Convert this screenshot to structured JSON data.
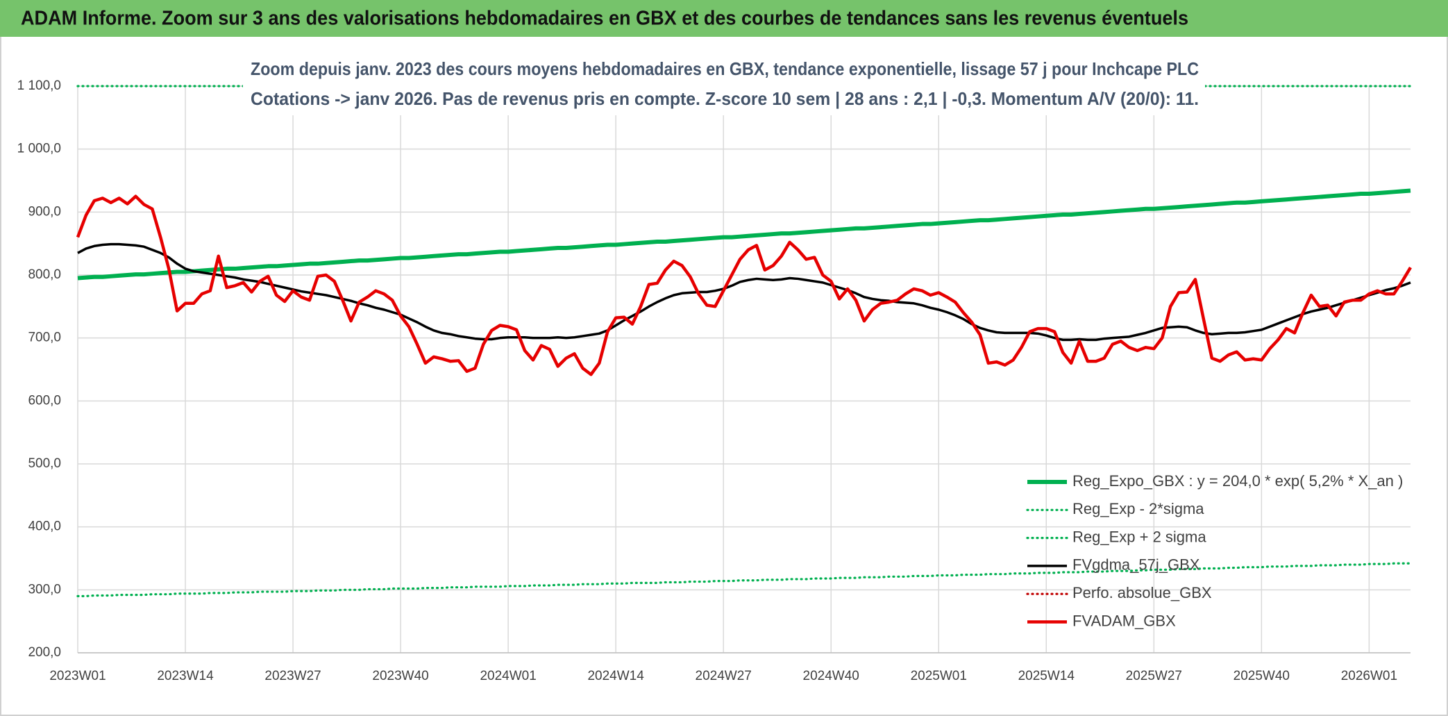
{
  "chart_data": {
    "type": "line",
    "title": "ADAM Informe. Zoom sur 3 ans des valorisations hebdomadaires en GBX et des courbes de tendances sans les revenus éventuels",
    "subtitle": [
      "Zoom depuis janv. 2023 des cours moyens hebdomadaires en GBX, tendance exponentielle, lissage 57 j pour Inchcape PLC",
      "Cotations -> janv 2026. Pas de revenus pris en compte. Z-score 10 sem | 28 ans : 2,1 | -0,3. Momentum A/V (20/0): 11."
    ],
    "categories": [
      "2023W01",
      null,
      null,
      null,
      null,
      null,
      null,
      null,
      null,
      null,
      null,
      null,
      null,
      "2023W14",
      null,
      null,
      null,
      null,
      null,
      null,
      null,
      null,
      null,
      null,
      null,
      null,
      "2023W27",
      null,
      null,
      null,
      null,
      null,
      null,
      null,
      null,
      null,
      null,
      null,
      null,
      "2023W40",
      null,
      null,
      null,
      null,
      null,
      null,
      null,
      null,
      null,
      null,
      null,
      null,
      "2024W01",
      null,
      null,
      null,
      null,
      null,
      null,
      null,
      null,
      null,
      null,
      null,
      null,
      "2024W14",
      null,
      null,
      null,
      null,
      null,
      null,
      null,
      null,
      null,
      null,
      null,
      null,
      "2024W27",
      null,
      null,
      null,
      null,
      null,
      null,
      null,
      null,
      null,
      null,
      null,
      null,
      "2024W40",
      null,
      null,
      null,
      null,
      null,
      null,
      null,
      null,
      null,
      null,
      null,
      null,
      "2025W01",
      null,
      null,
      null,
      null,
      null,
      null,
      null,
      null,
      null,
      null,
      null,
      null,
      "2025W14",
      null,
      null,
      null,
      null,
      null,
      null,
      null,
      null,
      null,
      null,
      null,
      null,
      "2025W27",
      null,
      null,
      null,
      null,
      null,
      null,
      null,
      null,
      null,
      null,
      null,
      null,
      "2025W40",
      null,
      null,
      null,
      null,
      null,
      null,
      null,
      null,
      null,
      null,
      null,
      null,
      "2026W01",
      null,
      null,
      null,
      null,
      null
    ],
    "ylim": [
      200,
      1100
    ],
    "yticks": [
      {
        "value": 200,
        "label": "200,0"
      },
      {
        "value": 300,
        "label": "300,0"
      },
      {
        "value": 400,
        "label": "400,0"
      },
      {
        "value": 500,
        "label": "500,0"
      },
      {
        "value": 600,
        "label": "600,0"
      },
      {
        "value": 700,
        "label": "700,0"
      },
      {
        "value": 800,
        "label": "800,0"
      },
      {
        "value": 900,
        "label": "900,0"
      },
      {
        "value": 1000,
        "label": "1 000,0"
      },
      {
        "value": 1100,
        "label": "1 100,0"
      }
    ],
    "grid": true,
    "legend": "lower right",
    "series": [
      {
        "name": "Reg_Expo_GBX : y = 204,0 * exp( 5,2% *  X_an )",
        "color": "#00b050",
        "line_style": "solid",
        "values": [
          795,
          796,
          797,
          797,
          798,
          799,
          800,
          801,
          801,
          802,
          803,
          804,
          805,
          805,
          806,
          807,
          808,
          809,
          810,
          810,
          811,
          812,
          813,
          814,
          814,
          815,
          816,
          817,
          818,
          818,
          819,
          820,
          821,
          822,
          823,
          823,
          824,
          825,
          826,
          827,
          827,
          828,
          829,
          830,
          831,
          832,
          833,
          833,
          834,
          835,
          836,
          837,
          837,
          838,
          839,
          840,
          841,
          842,
          843,
          843,
          844,
          845,
          846,
          847,
          848,
          848,
          849,
          850,
          851,
          852,
          853,
          853,
          854,
          855,
          856,
          857,
          858,
          859,
          860,
          860,
          861,
          862,
          863,
          864,
          865,
          866,
          866,
          867,
          868,
          869,
          870,
          871,
          872,
          873,
          874,
          874,
          875,
          876,
          877,
          878,
          879,
          880,
          881,
          881,
          882,
          883,
          884,
          885,
          886,
          887,
          887,
          888,
          889,
          890,
          891,
          892,
          893,
          894,
          895,
          896,
          896,
          897,
          898,
          899,
          900,
          901,
          902,
          903,
          904,
          905,
          905,
          906,
          907,
          908,
          909,
          910,
          911,
          912,
          913,
          914,
          915,
          915,
          916,
          917,
          918,
          919,
          920,
          921,
          922,
          923,
          924,
          925,
          926,
          927,
          928,
          929,
          929,
          930,
          931,
          932,
          933,
          934
        ]
      },
      {
        "name": "Reg_Exp - 2*sigma",
        "color": "#00b050",
        "line_style": "dotted",
        "values": [
          290,
          290,
          291,
          291,
          291,
          292,
          292,
          292,
          292,
          293,
          293,
          293,
          294,
          294,
          294,
          294,
          295,
          295,
          295,
          296,
          296,
          296,
          297,
          297,
          297,
          297,
          298,
          298,
          298,
          299,
          299,
          299,
          300,
          300,
          300,
          301,
          301,
          301,
          302,
          302,
          302,
          302,
          303,
          303,
          303,
          304,
          304,
          304,
          305,
          305,
          305,
          305,
          306,
          306,
          306,
          307,
          307,
          307,
          308,
          308,
          308,
          309,
          309,
          309,
          310,
          310,
          310,
          311,
          311,
          311,
          311,
          312,
          312,
          312,
          313,
          313,
          313,
          314,
          314,
          314,
          315,
          315,
          315,
          316,
          316,
          316,
          317,
          317,
          317,
          318,
          318,
          318,
          319,
          319,
          319,
          320,
          320,
          320,
          321,
          321,
          321,
          322,
          322,
          322,
          323,
          323,
          323,
          324,
          324,
          324,
          325,
          325,
          325,
          326,
          326,
          326,
          327,
          327,
          327,
          328,
          328,
          328,
          329,
          329,
          329,
          330,
          330,
          330,
          331,
          331,
          332,
          332,
          332,
          333,
          333,
          333,
          334,
          334,
          334,
          335,
          335,
          336,
          336,
          336,
          337,
          337,
          337,
          338,
          338,
          338,
          339,
          339,
          339,
          340,
          340,
          340,
          341,
          341,
          341,
          342,
          342,
          342
        ]
      },
      {
        "name": "Reg_Exp + 2 sigma",
        "color": "#00b050",
        "line_style": "dotted",
        "values": [
          1100,
          1100,
          1100,
          1100,
          1100,
          1100,
          1100,
          1100,
          1100,
          1100,
          1100,
          1100,
          1100,
          1100,
          1100,
          1100,
          1100,
          1100,
          1100,
          1100,
          1100,
          1100,
          1100,
          1100,
          1100,
          1100,
          1100,
          1100,
          1100,
          1100,
          1100,
          1100,
          1100,
          1100,
          1100,
          1100,
          1100,
          1100,
          1100,
          1100,
          1100,
          1100,
          1100,
          1100,
          1100,
          1100,
          1100,
          1100,
          1100,
          1100,
          1100,
          1100,
          1100,
          1100,
          1100,
          1100,
          1100,
          1100,
          1100,
          1100,
          1100,
          1100,
          1100,
          1100,
          1100,
          1100,
          1100,
          1100,
          1100,
          1100,
          1100,
          1100,
          1100,
          1100,
          1100,
          1100,
          1100,
          1100,
          1100,
          1100,
          1100,
          1100,
          1100,
          1100,
          1100,
          1100,
          1100,
          1100,
          1100,
          1100,
          1100,
          1100,
          1100,
          1100,
          1100,
          1100,
          1100,
          1100,
          1100,
          1100,
          1100,
          1100,
          1100,
          1100,
          1100,
          1100,
          1100,
          1100,
          1100,
          1100,
          1100,
          1100,
          1100,
          1100,
          1100,
          1100,
          1100,
          1100,
          1100,
          1100,
          1100,
          1100,
          1100,
          1100,
          1100,
          1100,
          1100,
          1100,
          1100,
          1100,
          1100,
          1100,
          1100,
          1100,
          1100,
          1100,
          1100,
          1100,
          1100,
          1100,
          1100,
          1100,
          1100,
          1100,
          1100,
          1100,
          1100,
          1100,
          1100,
          1100,
          1100,
          1100,
          1100,
          1100,
          1100,
          1100,
          1100,
          1100,
          1100,
          1100,
          1100,
          1100
        ]
      },
      {
        "name": "FVgdma_57j_GBX",
        "color": "#000000",
        "line_style": "solid",
        "values": [
          835,
          842,
          846,
          848,
          849,
          849,
          848,
          847,
          845,
          840,
          835,
          828,
          818,
          810,
          806,
          804,
          802,
          800,
          798,
          796,
          793,
          791,
          789,
          786,
          783,
          780,
          777,
          774,
          772,
          770,
          768,
          765,
          762,
          759,
          755,
          752,
          748,
          745,
          741,
          737,
          731,
          725,
          718,
          712,
          708,
          706,
          703,
          701,
          699,
          698,
          698,
          700,
          701,
          701,
          701,
          700,
          700,
          700,
          701,
          700,
          701,
          703,
          705,
          707,
          712,
          720,
          728,
          735,
          742,
          750,
          757,
          763,
          768,
          771,
          772,
          773,
          773,
          775,
          778,
          783,
          789,
          792,
          794,
          793,
          792,
          793,
          795,
          794,
          792,
          790,
          788,
          784,
          780,
          776,
          771,
          765,
          762,
          760,
          759,
          757,
          756,
          755,
          752,
          748,
          745,
          741,
          736,
          730,
          722,
          716,
          712,
          709,
          708,
          708,
          708,
          708,
          707,
          704,
          700,
          697,
          697,
          698,
          697,
          697,
          699,
          700,
          701,
          702,
          705,
          708,
          712,
          716,
          717,
          718,
          717,
          712,
          708,
          706,
          707,
          708,
          708,
          709,
          711,
          713,
          718,
          723,
          728,
          733,
          738,
          742,
          745,
          748,
          752,
          756,
          760,
          764,
          768,
          772,
          776,
          779,
          783,
          788
        ]
      },
      {
        "name": "Perfo. absolue_GBX",
        "color": "#c00000",
        "line_style": "dotted",
        "values": [
          null,
          null,
          null,
          null,
          null,
          null,
          null,
          null,
          null,
          null,
          null,
          null,
          null,
          null,
          null,
          null,
          null,
          null,
          null,
          null,
          null,
          null,
          null,
          null,
          null,
          null,
          null,
          null,
          null,
          null,
          null,
          null,
          null,
          null,
          null,
          null,
          null,
          null,
          null,
          null,
          null,
          null,
          null,
          null,
          null,
          null,
          null,
          null,
          null,
          null,
          null,
          null,
          null,
          null,
          null,
          null,
          null,
          null,
          null,
          null,
          null,
          null,
          null,
          null,
          null,
          null,
          null,
          null,
          null,
          null,
          null,
          null,
          null,
          null,
          null,
          null,
          null,
          null,
          null,
          null,
          null,
          null,
          null,
          null,
          null,
          null,
          null,
          null,
          null,
          null,
          null,
          null,
          null,
          null,
          null,
          null,
          null,
          null,
          null,
          null,
          null,
          null,
          null,
          null,
          null,
          null,
          null,
          null,
          null,
          null,
          null,
          null,
          null,
          null,
          null,
          null,
          null,
          null,
          null,
          null,
          null,
          null,
          null,
          null,
          null,
          null,
          null,
          null,
          null,
          null,
          null,
          null,
          null,
          null,
          null,
          null,
          null,
          null,
          null,
          null,
          null,
          null,
          null,
          null,
          null,
          null,
          null,
          null,
          null,
          null,
          null,
          null,
          null,
          null,
          null,
          null,
          null,
          null,
          null,
          null,
          null,
          null
        ]
      },
      {
        "name": "FVADAM_GBX",
        "color": "#e60000",
        "line_style": "solid",
        "values": [
          860,
          895,
          918,
          922,
          915,
          922,
          913,
          925,
          912,
          905,
          860,
          810,
          743,
          755,
          755,
          770,
          775,
          830,
          780,
          783,
          788,
          773,
          790,
          798,
          768,
          758,
          775,
          765,
          760,
          798,
          800,
          790,
          760,
          727,
          757,
          765,
          775,
          770,
          760,
          735,
          718,
          690,
          660,
          670,
          667,
          663,
          664,
          647,
          652,
          690,
          712,
          720,
          718,
          713,
          680,
          665,
          688,
          682,
          655,
          668,
          675,
          652,
          642,
          660,
          710,
          732,
          733,
          722,
          750,
          785,
          787,
          808,
          822,
          815,
          797,
          770,
          752,
          750,
          775,
          800,
          825,
          840,
          847,
          808,
          815,
          830,
          852,
          840,
          825,
          828,
          800,
          790,
          762,
          778,
          760,
          727,
          745,
          755,
          757,
          760,
          770,
          778,
          775,
          768,
          772,
          765,
          757,
          740,
          725,
          705,
          660,
          662,
          657,
          665,
          685,
          710,
          715,
          715,
          710,
          677,
          660,
          695,
          663,
          663,
          668,
          690,
          695,
          685,
          680,
          685,
          683,
          700,
          750,
          772,
          773,
          793,
          730,
          668,
          663,
          673,
          678,
          665,
          667,
          665,
          683,
          697,
          715,
          708,
          740,
          768,
          750,
          752,
          735,
          757,
          760,
          760,
          770,
          775,
          770,
          770,
          790,
          812
        ]
      }
    ]
  }
}
